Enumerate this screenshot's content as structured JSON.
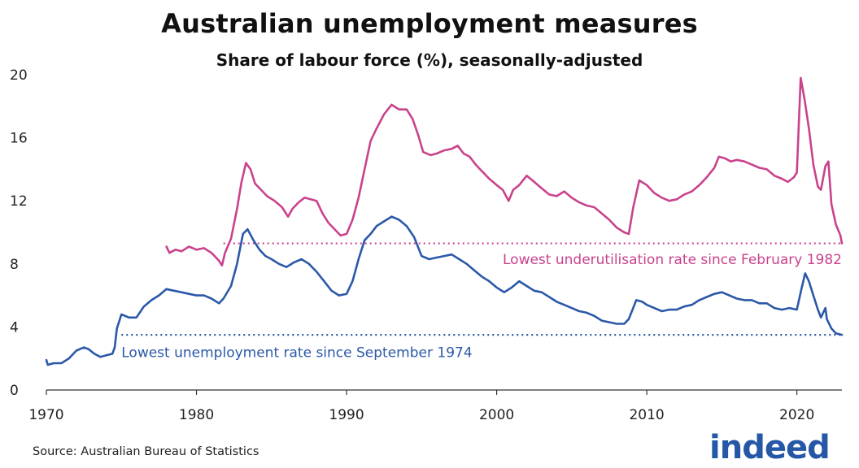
{
  "title": "Australian unemployment measures",
  "subtitle": "Share of labour force (%), seasonally-adjusted",
  "source": "Source: Australian Bureau of Statistics",
  "logo_text": "indeed",
  "colors": {
    "underutilisation": "#c9438c",
    "unemployment": "#2b58a8",
    "axis": "#333333"
  },
  "chart_data": {
    "type": "line",
    "title": "Australian unemployment measures",
    "subtitle": "Share of labour force (%), seasonally-adjusted",
    "xlim": [
      1970,
      2023
    ],
    "ylim": [
      0,
      20
    ],
    "x_ticks": [
      1970,
      1980,
      1990,
      2000,
      2010,
      2020
    ],
    "y_ticks": [
      0,
      4,
      8,
      12,
      16,
      20
    ],
    "grid": false,
    "series": [
      {
        "key": "underutilisation",
        "color": "#c9438c",
        "points": [
          [
            1978.0,
            9.1
          ],
          [
            1978.2,
            8.7
          ],
          [
            1978.6,
            8.9
          ],
          [
            1979.0,
            8.8
          ],
          [
            1979.5,
            9.1
          ],
          [
            1980.0,
            8.9
          ],
          [
            1980.5,
            9.0
          ],
          [
            1981.0,
            8.7
          ],
          [
            1981.5,
            8.2
          ],
          [
            1981.7,
            7.9
          ],
          [
            1981.9,
            8.7
          ],
          [
            1982.3,
            9.6
          ],
          [
            1982.7,
            11.5
          ],
          [
            1983.0,
            13.2
          ],
          [
            1983.3,
            14.4
          ],
          [
            1983.6,
            14.0
          ],
          [
            1983.9,
            13.1
          ],
          [
            1984.3,
            12.7
          ],
          [
            1984.7,
            12.3
          ],
          [
            1985.2,
            12.0
          ],
          [
            1985.7,
            11.6
          ],
          [
            1986.1,
            11.0
          ],
          [
            1986.4,
            11.5
          ],
          [
            1986.8,
            11.9
          ],
          [
            1987.2,
            12.2
          ],
          [
            1987.6,
            12.1
          ],
          [
            1988.0,
            12.0
          ],
          [
            1988.4,
            11.2
          ],
          [
            1988.8,
            10.6
          ],
          [
            1989.2,
            10.2
          ],
          [
            1989.6,
            9.8
          ],
          [
            1990.0,
            9.9
          ],
          [
            1990.4,
            10.8
          ],
          [
            1990.8,
            12.2
          ],
          [
            1991.2,
            14.0
          ],
          [
            1991.6,
            15.8
          ],
          [
            1992.0,
            16.6
          ],
          [
            1992.5,
            17.5
          ],
          [
            1993.0,
            18.1
          ],
          [
            1993.5,
            17.8
          ],
          [
            1994.0,
            17.8
          ],
          [
            1994.4,
            17.2
          ],
          [
            1994.8,
            16.1
          ],
          [
            1995.1,
            15.1
          ],
          [
            1995.6,
            14.9
          ],
          [
            1996.0,
            15.0
          ],
          [
            1996.5,
            15.2
          ],
          [
            1997.0,
            15.3
          ],
          [
            1997.4,
            15.5
          ],
          [
            1997.8,
            15.0
          ],
          [
            1998.2,
            14.8
          ],
          [
            1998.6,
            14.3
          ],
          [
            1999.0,
            13.9
          ],
          [
            1999.5,
            13.4
          ],
          [
            2000.0,
            13.0
          ],
          [
            2000.4,
            12.7
          ],
          [
            2000.8,
            12.0
          ],
          [
            2001.1,
            12.7
          ],
          [
            2001.5,
            13.0
          ],
          [
            2002.0,
            13.6
          ],
          [
            2002.5,
            13.2
          ],
          [
            2003.0,
            12.8
          ],
          [
            2003.5,
            12.4
          ],
          [
            2004.0,
            12.3
          ],
          [
            2004.5,
            12.6
          ],
          [
            2005.0,
            12.2
          ],
          [
            2005.5,
            11.9
          ],
          [
            2006.0,
            11.7
          ],
          [
            2006.5,
            11.6
          ],
          [
            2007.0,
            11.2
          ],
          [
            2007.5,
            10.8
          ],
          [
            2008.0,
            10.3
          ],
          [
            2008.5,
            10.0
          ],
          [
            2008.8,
            9.9
          ],
          [
            2009.1,
            11.6
          ],
          [
            2009.5,
            13.3
          ],
          [
            2010.0,
            13.0
          ],
          [
            2010.5,
            12.5
          ],
          [
            2011.0,
            12.2
          ],
          [
            2011.5,
            12.0
          ],
          [
            2012.0,
            12.1
          ],
          [
            2012.5,
            12.4
          ],
          [
            2013.0,
            12.6
          ],
          [
            2013.5,
            13.0
          ],
          [
            2014.0,
            13.5
          ],
          [
            2014.5,
            14.1
          ],
          [
            2014.8,
            14.8
          ],
          [
            2015.2,
            14.7
          ],
          [
            2015.6,
            14.5
          ],
          [
            2016.0,
            14.6
          ],
          [
            2016.5,
            14.5
          ],
          [
            2017.0,
            14.3
          ],
          [
            2017.5,
            14.1
          ],
          [
            2018.0,
            14.0
          ],
          [
            2018.5,
            13.6
          ],
          [
            2019.0,
            13.4
          ],
          [
            2019.4,
            13.2
          ],
          [
            2019.8,
            13.5
          ],
          [
            2020.0,
            13.8
          ],
          [
            2020.25,
            19.8
          ],
          [
            2020.5,
            18.5
          ],
          [
            2020.8,
            16.6
          ],
          [
            2021.1,
            14.3
          ],
          [
            2021.4,
            12.9
          ],
          [
            2021.6,
            12.7
          ],
          [
            2021.9,
            14.2
          ],
          [
            2022.1,
            14.5
          ],
          [
            2022.3,
            11.8
          ],
          [
            2022.6,
            10.5
          ],
          [
            2022.9,
            9.8
          ],
          [
            2023.0,
            9.3
          ]
        ]
      },
      {
        "key": "unemployment",
        "color": "#2b58a8",
        "points": [
          [
            1970.0,
            1.9
          ],
          [
            1970.1,
            1.6
          ],
          [
            1970.5,
            1.7
          ],
          [
            1971.0,
            1.7
          ],
          [
            1971.5,
            2.0
          ],
          [
            1972.0,
            2.5
          ],
          [
            1972.5,
            2.7
          ],
          [
            1972.8,
            2.6
          ],
          [
            1973.2,
            2.3
          ],
          [
            1973.6,
            2.1
          ],
          [
            1974.0,
            2.2
          ],
          [
            1974.4,
            2.3
          ],
          [
            1974.55,
            2.7
          ],
          [
            1974.7,
            3.9
          ],
          [
            1975.0,
            4.8
          ],
          [
            1975.5,
            4.6
          ],
          [
            1976.0,
            4.6
          ],
          [
            1976.5,
            5.3
          ],
          [
            1977.0,
            5.7
          ],
          [
            1977.5,
            6.0
          ],
          [
            1978.0,
            6.4
          ],
          [
            1978.5,
            6.3
          ],
          [
            1979.0,
            6.2
          ],
          [
            1979.5,
            6.1
          ],
          [
            1980.0,
            6.0
          ],
          [
            1980.5,
            6.0
          ],
          [
            1981.0,
            5.8
          ],
          [
            1981.5,
            5.5
          ],
          [
            1981.8,
            5.8
          ],
          [
            1982.3,
            6.6
          ],
          [
            1982.7,
            8.0
          ],
          [
            1983.1,
            9.9
          ],
          [
            1983.4,
            10.2
          ],
          [
            1983.8,
            9.5
          ],
          [
            1984.2,
            8.9
          ],
          [
            1984.6,
            8.5
          ],
          [
            1985.0,
            8.3
          ],
          [
            1985.5,
            8.0
          ],
          [
            1986.0,
            7.8
          ],
          [
            1986.5,
            8.1
          ],
          [
            1987.0,
            8.3
          ],
          [
            1987.5,
            8.0
          ],
          [
            1988.0,
            7.5
          ],
          [
            1988.5,
            6.9
          ],
          [
            1989.0,
            6.3
          ],
          [
            1989.5,
            6.0
          ],
          [
            1990.0,
            6.1
          ],
          [
            1990.4,
            6.9
          ],
          [
            1990.8,
            8.3
          ],
          [
            1991.2,
            9.5
          ],
          [
            1991.6,
            9.9
          ],
          [
            1992.0,
            10.4
          ],
          [
            1992.5,
            10.7
          ],
          [
            1993.0,
            11.0
          ],
          [
            1993.5,
            10.8
          ],
          [
            1994.0,
            10.4
          ],
          [
            1994.5,
            9.7
          ],
          [
            1995.0,
            8.5
          ],
          [
            1995.5,
            8.3
          ],
          [
            1996.0,
            8.4
          ],
          [
            1996.5,
            8.5
          ],
          [
            1997.0,
            8.6
          ],
          [
            1997.5,
            8.3
          ],
          [
            1998.0,
            8.0
          ],
          [
            1998.5,
            7.6
          ],
          [
            1999.0,
            7.2
          ],
          [
            1999.5,
            6.9
          ],
          [
            2000.0,
            6.5
          ],
          [
            2000.5,
            6.2
          ],
          [
            2001.0,
            6.5
          ],
          [
            2001.5,
            6.9
          ],
          [
            2002.0,
            6.6
          ],
          [
            2002.5,
            6.3
          ],
          [
            2003.0,
            6.2
          ],
          [
            2003.5,
            5.9
          ],
          [
            2004.0,
            5.6
          ],
          [
            2004.5,
            5.4
          ],
          [
            2005.0,
            5.2
          ],
          [
            2005.5,
            5.0
          ],
          [
            2006.0,
            4.9
          ],
          [
            2006.5,
            4.7
          ],
          [
            2007.0,
            4.4
          ],
          [
            2007.5,
            4.3
          ],
          [
            2008.0,
            4.2
          ],
          [
            2008.5,
            4.2
          ],
          [
            2008.8,
            4.5
          ],
          [
            2009.3,
            5.7
          ],
          [
            2009.7,
            5.6
          ],
          [
            2010.0,
            5.4
          ],
          [
            2010.5,
            5.2
          ],
          [
            2011.0,
            5.0
          ],
          [
            2011.5,
            5.1
          ],
          [
            2012.0,
            5.1
          ],
          [
            2012.5,
            5.3
          ],
          [
            2013.0,
            5.4
          ],
          [
            2013.5,
            5.7
          ],
          [
            2014.0,
            5.9
          ],
          [
            2014.5,
            6.1
          ],
          [
            2015.0,
            6.2
          ],
          [
            2015.5,
            6.0
          ],
          [
            2016.0,
            5.8
          ],
          [
            2016.5,
            5.7
          ],
          [
            2017.0,
            5.7
          ],
          [
            2017.5,
            5.5
          ],
          [
            2018.0,
            5.5
          ],
          [
            2018.5,
            5.2
          ],
          [
            2019.0,
            5.1
          ],
          [
            2019.5,
            5.2
          ],
          [
            2020.0,
            5.1
          ],
          [
            2020.3,
            6.4
          ],
          [
            2020.55,
            7.4
          ],
          [
            2020.8,
            6.9
          ],
          [
            2021.1,
            6.0
          ],
          [
            2021.4,
            5.1
          ],
          [
            2021.6,
            4.6
          ],
          [
            2021.9,
            5.2
          ],
          [
            2022.0,
            4.5
          ],
          [
            2022.3,
            3.9
          ],
          [
            2022.6,
            3.6
          ],
          [
            2023.0,
            3.5
          ]
        ]
      }
    ],
    "reference_lines": [
      {
        "key": "underutilisation",
        "y": 9.3,
        "x_start": 1981.8,
        "x_end": 2023.0,
        "label": "Lowest underutilisation rate since February 1982",
        "label_anchor": "end",
        "label_y": 8.3,
        "color": "#c9438c"
      },
      {
        "key": "unemployment",
        "y": 3.5,
        "x_start": 1975.0,
        "x_end": 2023.0,
        "label": "Lowest unemployment rate since September 1974",
        "label_anchor": "start",
        "label_y": 2.4,
        "color": "#2b58a8"
      }
    ]
  }
}
